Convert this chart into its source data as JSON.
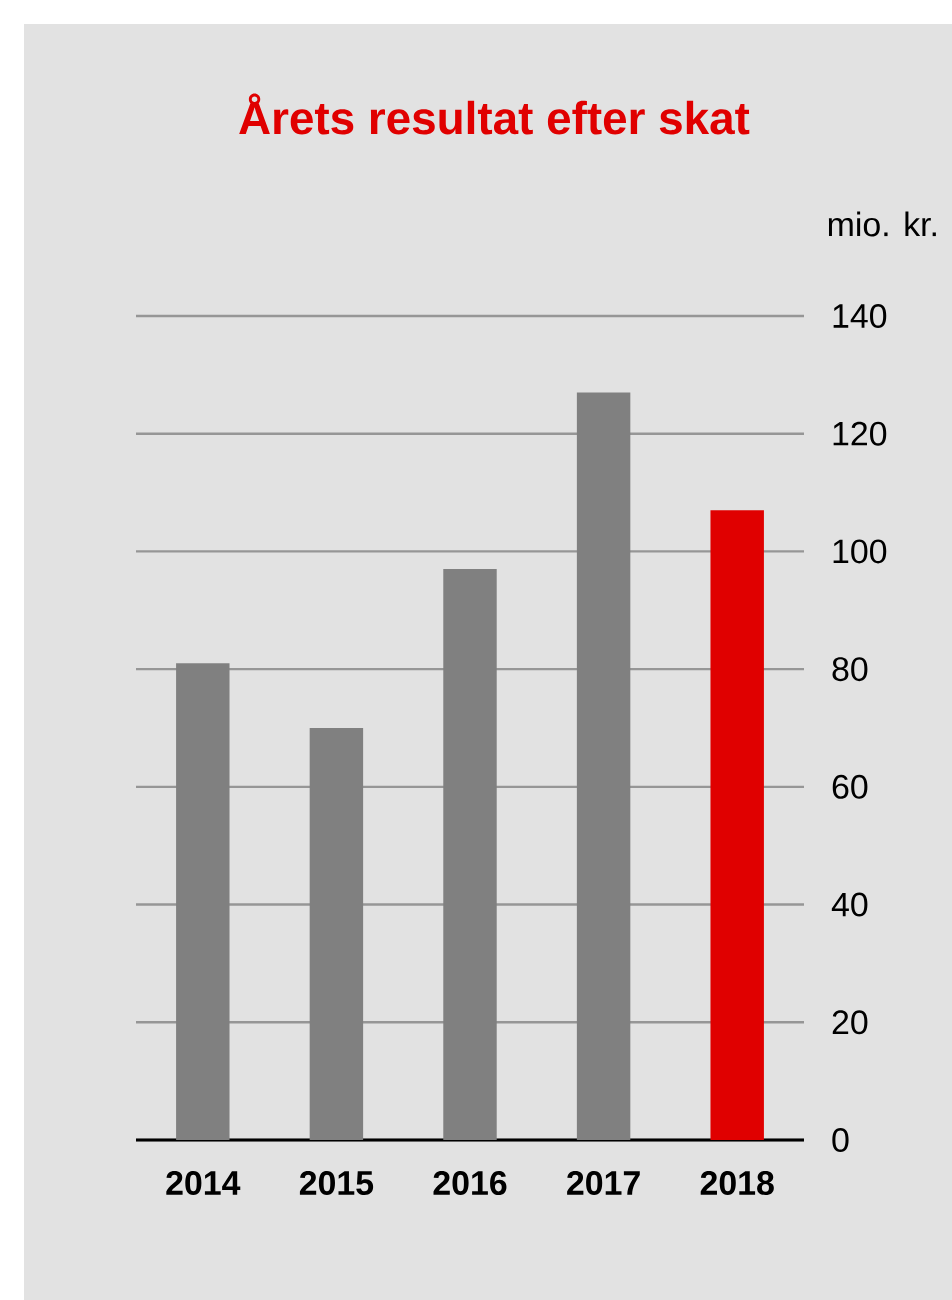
{
  "chart_data": {
    "type": "bar",
    "title": "Årets resultat efter skat",
    "ylabel": "mio. kr.",
    "categories": [
      "2014",
      "2015",
      "2016",
      "2017",
      "2018"
    ],
    "values": [
      81,
      70,
      97,
      127,
      107
    ],
    "colors": [
      "#808080",
      "#808080",
      "#808080",
      "#808080",
      "#e00000"
    ],
    "ylim": [
      0,
      140
    ],
    "yticks": [
      0,
      20,
      40,
      60,
      80,
      100,
      120,
      140
    ],
    "grid": "y"
  }
}
